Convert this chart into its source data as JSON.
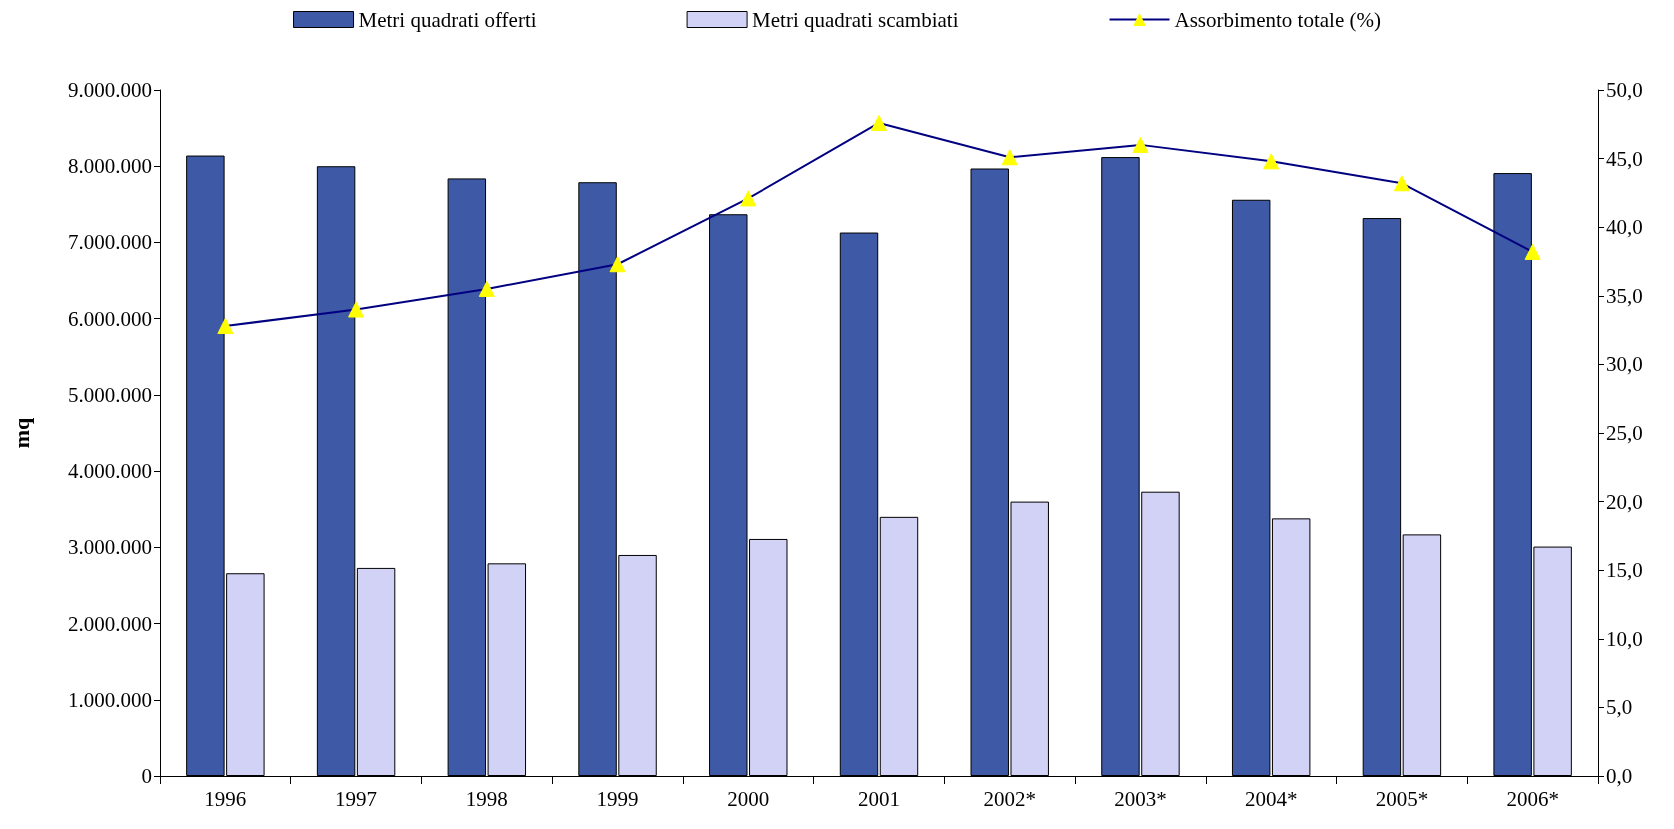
{
  "chart_data": {
    "type": "bar",
    "ylabel": "mq",
    "legend": "top",
    "grid": false,
    "categories": [
      "1996",
      "1997",
      "1998",
      "1999",
      "2000",
      "2001",
      "2002*",
      "2003*",
      "2004*",
      "2005*",
      "2006*"
    ],
    "series": [
      {
        "name": "Metri quadrati offerti",
        "color": "#3e5aa6",
        "values": [
          8140000,
          8000000,
          7840000,
          7790000,
          7370000,
          7130000,
          7970000,
          8120000,
          7560000,
          7320000,
          7910000
        ]
      },
      {
        "name": "Metri quadrati scambiati",
        "color": "#d2d2f7",
        "values": [
          2660000,
          2730000,
          2790000,
          2900000,
          3110000,
          3400000,
          3600000,
          3730000,
          3380000,
          3170000,
          3010000
        ]
      },
      {
        "name": "Assorbimento totale (%)",
        "type": "line",
        "axis": "y2",
        "color": "#000080",
        "marker": "triangle",
        "values": [
          32.8,
          34.0,
          35.5,
          37.3,
          42.1,
          47.6,
          45.1,
          46.0,
          44.8,
          43.2,
          38.2
        ]
      }
    ],
    "ylim": [
      0,
      9000000
    ],
    "yticks": [
      {
        "value": 0,
        "label": "0"
      },
      {
        "value": 1000000,
        "label": "1.000.000"
      },
      {
        "value": 2000000,
        "label": "2.000.000"
      },
      {
        "value": 3000000,
        "label": "3.000.000"
      },
      {
        "value": 4000000,
        "label": "4.000.000"
      },
      {
        "value": 5000000,
        "label": "5.000.000"
      },
      {
        "value": 6000000,
        "label": "6.000.000"
      },
      {
        "value": 7000000,
        "label": "7.000.000"
      },
      {
        "value": 8000000,
        "label": "8.000.000"
      },
      {
        "value": 9000000,
        "label": "9.000.000"
      }
    ],
    "y2lim": [
      0,
      50
    ],
    "y2ticks": [
      {
        "value": 0,
        "label": "0,0"
      },
      {
        "value": 5,
        "label": "5,0"
      },
      {
        "value": 10,
        "label": "10,0"
      },
      {
        "value": 15,
        "label": "15,0"
      },
      {
        "value": 20,
        "label": "20,0"
      },
      {
        "value": 25,
        "label": "25,0"
      },
      {
        "value": 30,
        "label": "30,0"
      },
      {
        "value": 35,
        "label": "35,0"
      },
      {
        "value": 40,
        "label": "40,0"
      },
      {
        "value": 45,
        "label": "45,0"
      },
      {
        "value": 50,
        "label": "50,0"
      }
    ]
  }
}
